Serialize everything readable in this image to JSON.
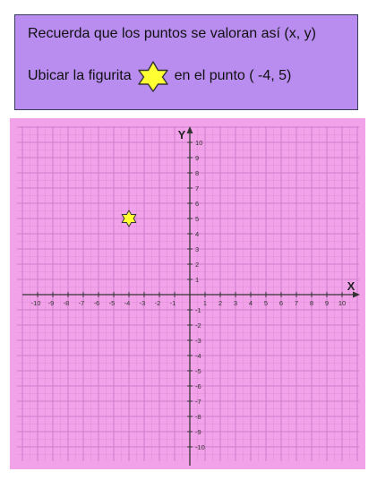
{
  "instructions": {
    "line1": "Recuerda que los puntos se valoran así (x, y)",
    "line2_before": "Ubicar la figurita",
    "line2_after": "en el punto ( -4, 5)",
    "box_color": "#b98cf0"
  },
  "chart_data": {
    "type": "scatter",
    "xlabel": "X",
    "ylabel": "Y",
    "xlim": [
      -10,
      10
    ],
    "ylim": [
      -10,
      10
    ],
    "x_ticks": [
      -10,
      -9,
      -8,
      -7,
      -6,
      -5,
      -4,
      -3,
      -2,
      -1,
      1,
      2,
      3,
      4,
      5,
      6,
      7,
      8,
      9,
      10
    ],
    "y_ticks": [
      10,
      9,
      8,
      7,
      6,
      5,
      4,
      3,
      2,
      1,
      -1,
      -2,
      -3,
      -4,
      -5,
      -6,
      -7,
      -8,
      -9,
      -10
    ],
    "grid": true,
    "minor_grid": true,
    "points": [
      {
        "x": -4,
        "y": 5,
        "marker": "star-of-david",
        "color": "#ffff33"
      }
    ],
    "background": "#f2a2e9",
    "grid_color": "#cf7fca"
  }
}
